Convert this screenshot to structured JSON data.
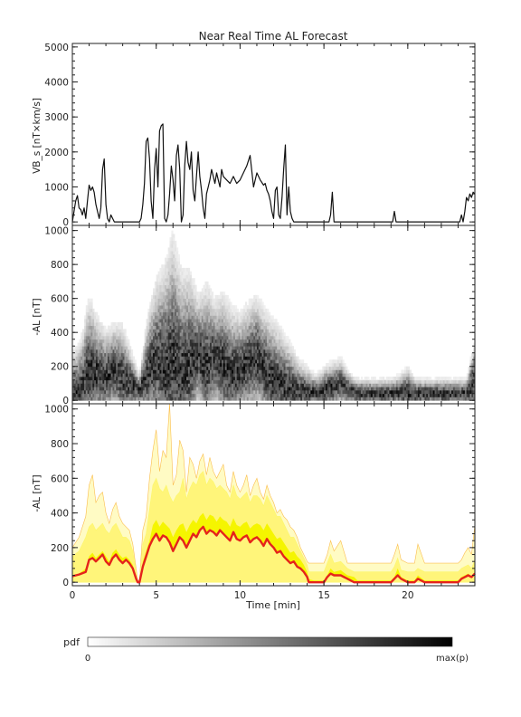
{
  "chart_data": [
    {
      "type": "line",
      "title": "Near Real Time AL Forecast",
      "ylabel": "VB_s [nT×km/s]",
      "xlim": [
        0,
        24
      ],
      "ylim": [
        -100,
        5100
      ],
      "yticks": [
        0,
        1000,
        2000,
        3000,
        4000,
        5000
      ],
      "series": [
        {
          "x": [
            0,
            0.2,
            0.3,
            0.4,
            0.5,
            0.6,
            0.7,
            0.8,
            0.9,
            1.0,
            1.1,
            1.2,
            1.3,
            1.4,
            1.5,
            1.6,
            1.7,
            1.8,
            1.9,
            2.0,
            2.1,
            2.2,
            2.3,
            2.5,
            4.0,
            4.1,
            4.2,
            4.3,
            4.4,
            4.5,
            4.6,
            4.7,
            4.8,
            4.9,
            5.0,
            5.1,
            5.2,
            5.3,
            5.4,
            5.5,
            5.6,
            5.7,
            5.8,
            5.9,
            6.0,
            6.1,
            6.2,
            6.3,
            6.4,
            6.5,
            6.6,
            6.7,
            6.8,
            6.9,
            7.0,
            7.1,
            7.2,
            7.3,
            7.4,
            7.5,
            7.6,
            7.7,
            7.8,
            7.9,
            8.0,
            8.1,
            8.2,
            8.3,
            8.4,
            8.5,
            8.6,
            8.7,
            8.8,
            8.9,
            9.0,
            9.2,
            9.4,
            9.6,
            9.8,
            10.0,
            10.2,
            10.4,
            10.6,
            10.8,
            11.0,
            11.2,
            11.4,
            11.5,
            11.6,
            11.7,
            11.8,
            11.9,
            12.0,
            12.1,
            12.2,
            12.3,
            12.4,
            12.5,
            12.6,
            12.7,
            12.8,
            12.9,
            13.0,
            13.1,
            13.2,
            14.0,
            15.0,
            15.3,
            15.4,
            15.5,
            15.6,
            16.0,
            19.0,
            19.1,
            19.2,
            19.3,
            19.4,
            23.1,
            23.2,
            23.3,
            23.4,
            23.5,
            23.6,
            23.7,
            23.8,
            23.9,
            24.0
          ],
          "values": [
            0,
            600,
            750,
            400,
            350,
            200,
            400,
            100,
            600,
            1050,
            900,
            1000,
            850,
            500,
            300,
            100,
            400,
            1500,
            1800,
            500,
            100,
            0,
            200,
            0,
            0,
            100,
            500,
            1100,
            2300,
            2400,
            1800,
            600,
            100,
            1500,
            2100,
            1000,
            2600,
            2750,
            2800,
            100,
            0,
            200,
            800,
            1600,
            1200,
            600,
            1900,
            2200,
            1500,
            0,
            200,
            1600,
            2300,
            1700,
            1500,
            2000,
            900,
            600,
            1300,
            2000,
            1300,
            900,
            400,
            100,
            800,
            1000,
            1200,
            1500,
            1300,
            1100,
            1400,
            1200,
            1000,
            1500,
            1300,
            1200,
            1100,
            1300,
            1100,
            1200,
            1400,
            1600,
            1900,
            1000,
            1400,
            1200,
            1050,
            1100,
            900,
            800,
            600,
            300,
            100,
            900,
            1000,
            200,
            100,
            700,
            1500,
            2200,
            200,
            1000,
            300,
            100,
            0,
            0,
            0,
            0,
            200,
            850,
            0,
            0,
            0,
            0,
            300,
            0,
            0,
            0,
            200,
            0,
            300,
            700,
            600,
            800,
            700,
            850,
            800
          ]
        }
      ]
    },
    {
      "type": "heatmap",
      "ylabel": "-AL [nT]",
      "xlim": [
        0,
        24
      ],
      "ylim": [
        -20,
        1030
      ],
      "yticks": [
        0,
        200,
        400,
        600,
        800,
        1000
      ],
      "bin_size": {
        "x": 0.1,
        "y": 20
      },
      "envelope": {
        "x": [
          0,
          0.5,
          1.0,
          1.5,
          2.0,
          2.5,
          3.0,
          3.5,
          4.0,
          4.5,
          5.0,
          5.5,
          6.0,
          6.5,
          7.0,
          7.5,
          8.0,
          8.5,
          9.0,
          9.5,
          10.0,
          10.5,
          11.0,
          11.5,
          12.0,
          12.5,
          13.0,
          13.5,
          14.0,
          14.5,
          15.0,
          15.5,
          16.0,
          16.5,
          17.0,
          17.5,
          18.0,
          18.5,
          19.0,
          19.5,
          20.0,
          20.5,
          21.0,
          21.5,
          22.0,
          22.5,
          23.0,
          23.5,
          24.0
        ],
        "center": [
          40,
          60,
          180,
          160,
          140,
          180,
          140,
          100,
          60,
          160,
          250,
          200,
          220,
          180,
          220,
          280,
          200,
          260,
          210,
          160,
          180,
          220,
          260,
          180,
          120,
          90,
          70,
          60,
          50,
          50,
          60,
          80,
          100,
          60,
          40,
          40,
          40,
          40,
          40,
          50,
          40,
          40,
          40,
          40,
          40,
          40,
          40,
          40,
          120
        ],
        "top": [
          280,
          360,
          620,
          500,
          420,
          460,
          450,
          300,
          150,
          520,
          720,
          820,
          1000,
          780,
          780,
          620,
          700,
          600,
          640,
          560,
          520,
          580,
          620,
          540,
          480,
          420,
          340,
          240,
          200,
          150,
          200,
          230,
          250,
          170,
          130,
          130,
          130,
          130,
          130,
          150,
          200,
          130,
          130,
          130,
          130,
          130,
          130,
          130,
          360
        ]
      }
    },
    {
      "type": "area",
      "ylabel": "-AL [nT]",
      "xlabel": "Time [min]",
      "xlim": [
        0,
        24
      ],
      "ylim": [
        -20,
        1030
      ],
      "xticks": [
        0,
        5,
        10,
        15,
        20
      ],
      "yticks": [
        0,
        200,
        400,
        600,
        800,
        1000
      ],
      "x": [
        0,
        0.4,
        0.8,
        1.0,
        1.2,
        1.4,
        1.6,
        1.8,
        2.0,
        2.2,
        2.4,
        2.6,
        2.8,
        3.0,
        3.2,
        3.4,
        3.6,
        3.8,
        3.9,
        4.0,
        4.2,
        4.4,
        4.6,
        4.8,
        5.0,
        5.2,
        5.4,
        5.6,
        5.8,
        6.0,
        6.2,
        6.4,
        6.6,
        6.8,
        7.0,
        7.2,
        7.4,
        7.6,
        7.8,
        8.0,
        8.2,
        8.4,
        8.6,
        8.8,
        9.0,
        9.2,
        9.4,
        9.6,
        9.8,
        10.0,
        10.2,
        10.4,
        10.6,
        10.8,
        11.0,
        11.2,
        11.4,
        11.6,
        11.8,
        12.0,
        12.2,
        12.4,
        12.6,
        12.8,
        13.0,
        13.2,
        13.4,
        13.6,
        13.8,
        14.0,
        14.1,
        14.2,
        14.4,
        14.6,
        15.0,
        15.2,
        15.4,
        15.6,
        16.0,
        16.4,
        16.8,
        17.0,
        17.2,
        18.0,
        19.0,
        19.2,
        19.4,
        19.6,
        20.0,
        20.4,
        20.6,
        21.0,
        22.0,
        23.0,
        23.2,
        23.4,
        23.6,
        23.8,
        24.0
      ],
      "series": [
        {
          "name": "",
          "color": "#f5f500",
          "values": [
            40,
            50,
            80,
            150,
            170,
            140,
            160,
            180,
            150,
            120,
            170,
            190,
            160,
            140,
            150,
            130,
            100,
            30,
            0,
            0,
            120,
            180,
            240,
            330,
            360,
            320,
            350,
            330,
            310,
            260,
            300,
            330,
            340,
            290,
            330,
            360,
            340,
            380,
            400,
            360,
            390,
            380,
            350,
            380,
            360,
            350,
            320,
            370,
            330,
            320,
            340,
            350,
            310,
            330,
            340,
            330,
            300,
            340,
            310,
            280,
            250,
            260,
            230,
            200,
            170,
            180,
            150,
            130,
            100,
            60,
            20,
            15,
            10,
            10,
            10,
            40,
            80,
            60,
            70,
            40,
            30,
            10,
            10,
            10,
            10,
            30,
            80,
            30,
            10,
            10,
            40,
            10,
            10,
            10,
            30,
            40,
            50,
            30,
            60
          ]
        },
        {
          "name": "",
          "color": "#e5231b",
          "values": [
            35,
            45,
            60,
            130,
            140,
            120,
            140,
            160,
            120,
            100,
            140,
            160,
            130,
            110,
            130,
            110,
            80,
            20,
            0,
            0,
            90,
            150,
            210,
            250,
            280,
            240,
            270,
            260,
            230,
            180,
            220,
            260,
            240,
            200,
            240,
            280,
            260,
            300,
            320,
            280,
            300,
            290,
            270,
            300,
            280,
            260,
            240,
            290,
            250,
            240,
            260,
            270,
            230,
            250,
            260,
            240,
            210,
            250,
            220,
            200,
            170,
            180,
            150,
            130,
            110,
            120,
            90,
            80,
            60,
            30,
            0,
            0,
            0,
            0,
            0,
            30,
            50,
            40,
            40,
            20,
            0,
            0,
            0,
            0,
            0,
            20,
            40,
            20,
            0,
            0,
            20,
            0,
            0,
            0,
            20,
            30,
            40,
            30,
            50
          ]
        }
      ],
      "bands": [
        {
          "name": "",
          "color": "#fcf76a",
          "values": [
            150,
            180,
            260,
            320,
            340,
            300,
            320,
            340,
            300,
            280,
            320,
            340,
            300,
            260,
            260,
            240,
            180,
            60,
            10,
            10,
            220,
            280,
            420,
            560,
            600,
            540,
            520,
            560,
            500,
            460,
            500,
            520,
            600,
            480,
            540,
            580,
            560,
            620,
            640,
            560,
            600,
            580,
            540,
            560,
            540,
            520,
            480,
            560,
            500,
            480,
            500,
            520,
            460,
            500,
            500,
            480,
            440,
            500,
            460,
            420,
            380,
            380,
            340,
            300,
            260,
            260,
            220,
            180,
            140,
            100,
            60,
            60,
            60,
            60,
            60,
            110,
            160,
            110,
            120,
            80,
            60,
            60,
            60,
            60,
            60,
            90,
            140,
            70,
            60,
            60,
            80,
            60,
            60,
            60,
            80,
            90,
            100,
            80,
            130
          ]
        },
        {
          "name": "",
          "color": "#fbbd4d",
          "values": [
            200,
            260,
            380,
            560,
            620,
            460,
            500,
            520,
            400,
            340,
            420,
            460,
            380,
            340,
            320,
            300,
            220,
            80,
            10,
            10,
            300,
            380,
            600,
            760,
            880,
            640,
            760,
            720,
            1030,
            560,
            620,
            820,
            760,
            520,
            720,
            680,
            600,
            700,
            740,
            620,
            720,
            640,
            600,
            640,
            680,
            560,
            520,
            640,
            560,
            520,
            560,
            620,
            500,
            560,
            600,
            520,
            480,
            560,
            500,
            460,
            400,
            420,
            380,
            360,
            320,
            300,
            260,
            200,
            160,
            120,
            110,
            110,
            110,
            110,
            110,
            160,
            240,
            180,
            240,
            110,
            110,
            110,
            110,
            110,
            110,
            160,
            220,
            130,
            110,
            110,
            220,
            110,
            110,
            110,
            130,
            170,
            200,
            160,
            330
          ]
        }
      ]
    }
  ],
  "colorbar": {
    "label": "pdf",
    "min_label": "0",
    "max_label": "max(p)"
  }
}
